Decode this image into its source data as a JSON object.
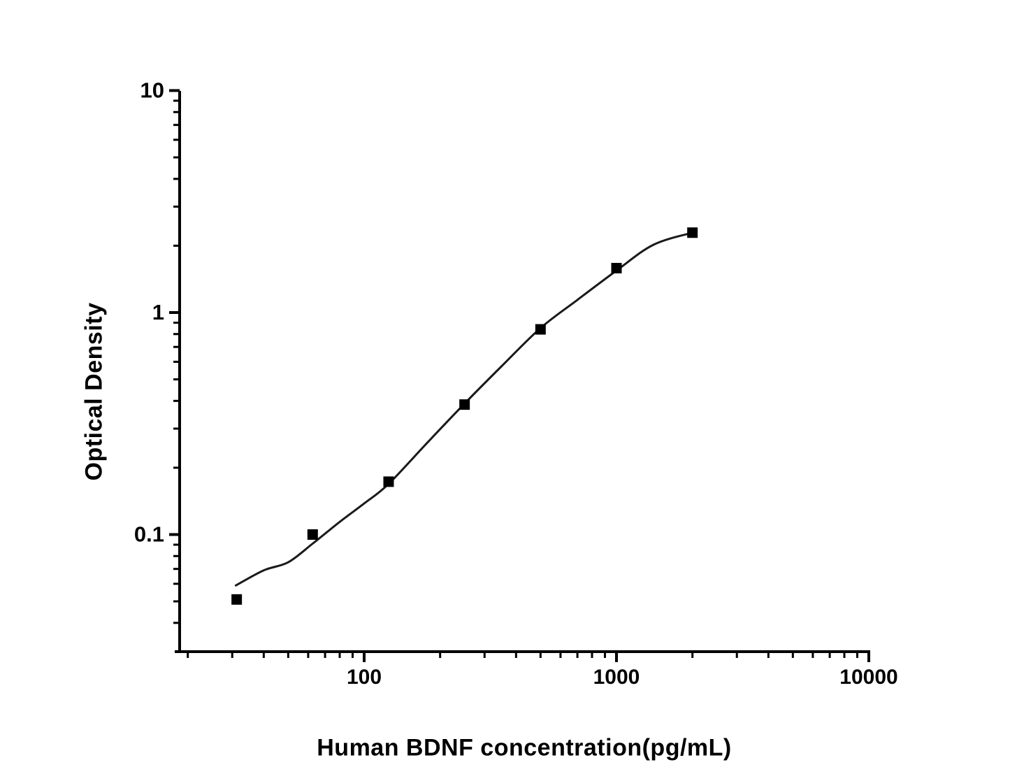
{
  "chart_data": {
    "type": "scatter",
    "title": "",
    "xlabel": "Human BDNF concentration(pg/mL)",
    "ylabel": "Optical Density",
    "background_color": "#ffffff",
    "axis_color": "#000000",
    "curve_color": "#1a1a1a",
    "marker_color": "#000000",
    "marker_shape": "square",
    "grid": "off",
    "legend": "none",
    "x_axis": {
      "scale": "log",
      "range": [
        18.7,
        10000
      ],
      "major_ticks": [
        {
          "value": 100,
          "label": "100"
        },
        {
          "value": 1000,
          "label": "1000"
        },
        {
          "value": 10000,
          "label": "10000"
        }
      ],
      "minor_ticks_rule": "2-9 per decade"
    },
    "y_axis": {
      "scale": "log",
      "range": [
        0.0315,
        10
      ],
      "major_ticks": [
        {
          "value": 10,
          "label": "10"
        },
        {
          "value": 1,
          "label": "1"
        },
        {
          "value": 0.1,
          "label": "0.1"
        }
      ],
      "minor_ticks_rule": "2-9 per decade"
    },
    "series": [
      {
        "name": "standard-points",
        "type": "scatter",
        "points": [
          [
            31.25,
            0.051
          ],
          [
            62.5,
            0.1
          ],
          [
            125,
            0.173
          ],
          [
            250,
            0.385
          ],
          [
            500,
            0.84
          ],
          [
            1000,
            1.585
          ],
          [
            2000,
            2.29
          ]
        ]
      },
      {
        "name": "fitted-curve",
        "type": "line",
        "points": [
          [
            31,
            0.059
          ],
          [
            40,
            0.069
          ],
          [
            50,
            0.075
          ],
          [
            62.5,
            0.091
          ],
          [
            80,
            0.114
          ],
          [
            100,
            0.138
          ],
          [
            125,
            0.169
          ],
          [
            180,
            0.263
          ],
          [
            250,
            0.389
          ],
          [
            350,
            0.572
          ],
          [
            500,
            0.851
          ],
          [
            700,
            1.14
          ],
          [
            1000,
            1.545
          ],
          [
            1400,
            2.02
          ],
          [
            2000,
            2.29
          ]
        ]
      }
    ]
  }
}
